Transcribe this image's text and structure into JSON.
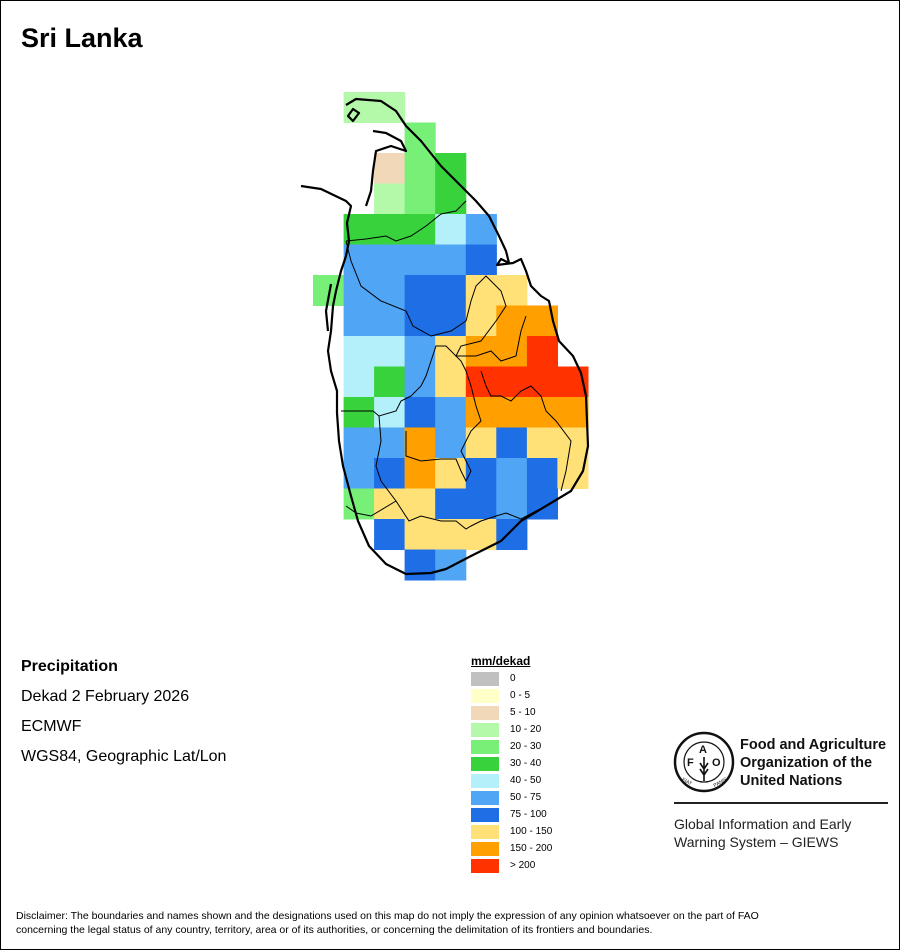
{
  "title": "Sri Lanka",
  "info": {
    "variable": "Precipitation",
    "period": "Dekad 2 February 2026",
    "source": "ECMWF",
    "projection": "WGS84, Geographic Lat/Lon"
  },
  "legend": {
    "title": "mm/dekad",
    "classes": [
      {
        "code": "z",
        "label": "0",
        "color": "#c0c0c0"
      },
      {
        "code": "a",
        "label": "0 - 5",
        "color": "#ffffc8"
      },
      {
        "code": "b",
        "label": "5 - 10",
        "color": "#f0d8b8"
      },
      {
        "code": "c",
        "label": "10 - 20",
        "color": "#b4f8aa"
      },
      {
        "code": "d",
        "label": "20 - 30",
        "color": "#78f078"
      },
      {
        "code": "e",
        "label": "30 - 40",
        "color": "#37d23c"
      },
      {
        "code": "f",
        "label": "40 - 50",
        "color": "#b4f0fa"
      },
      {
        "code": "g",
        "label": "50 - 75",
        "color": "#50a5f5"
      },
      {
        "code": "h",
        "label": "75 - 100",
        "color": "#1e6ee6"
      },
      {
        "code": "i",
        "label": "100 - 150",
        "color": "#ffe178"
      },
      {
        "code": "j",
        "label": "150 - 200",
        "color": "#ffa000"
      },
      {
        "code": "k",
        "label": "> 200",
        "color": "#ff3200"
      }
    ]
  },
  "grid_rows": [
    ".cc......",
    "...d.....",
    "..bde....",
    "..cde....",
    ".eeefg...",
    ".ggggh...",
    "dgghhii..",
    ".gghhijj.",
    ".ffgijjk.",
    ".fegikkkk",
    ".efhgjjjj",
    ".ggjgihii",
    ".ghjihghi",
    ".diihhgh.",
    "..hiiih..",
    "...hg...."
  ],
  "logo": {
    "org_name": "Food and Agriculture Organization of the United Nations",
    "org_line1": "Food and Agriculture",
    "org_line2": "Organization of the",
    "org_line3": "United Nations",
    "emblem_text": "FAO FIAT PANIS",
    "giews_line1": "Global Information and Early",
    "giews_line2": "Warning System – GIEWS"
  },
  "disclaimer_line1": "Disclaimer: The boundaries and names shown and the designations used on this map do not imply the expression of any opinion whatsoever on the part of FAO",
  "disclaimer_line2": "concerning the legal status of any country, territory, area or of its authorities, or concerning the delimitation of its frontiers and boundaries."
}
